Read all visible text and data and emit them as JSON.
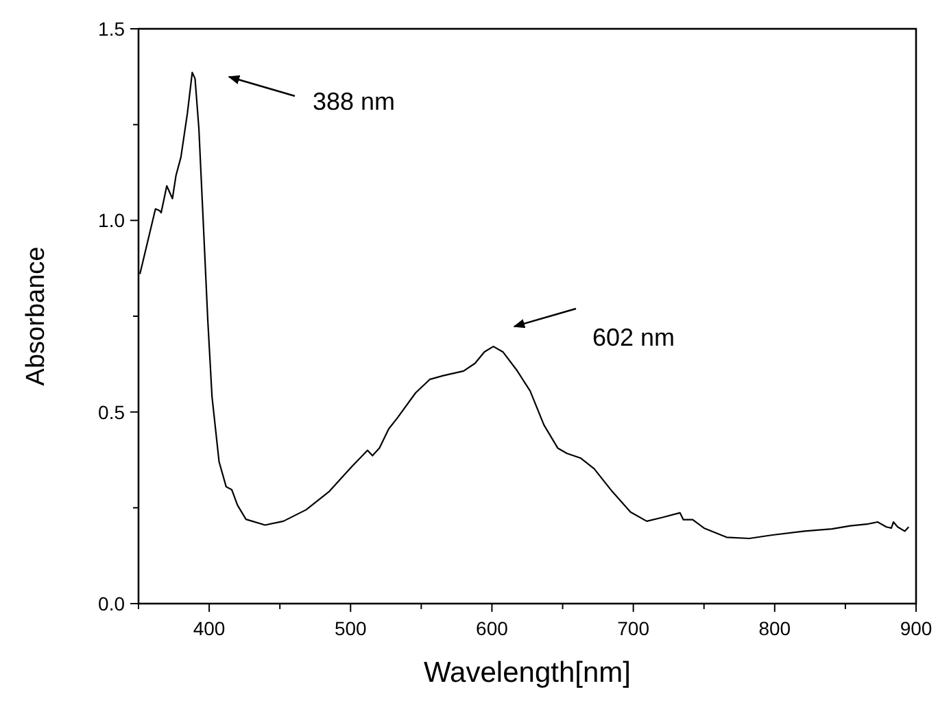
{
  "chart_data": {
    "type": "line",
    "xlabel": "Wavelength[nm]",
    "ylabel": "Absorbance",
    "xlim": [
      350,
      900
    ],
    "ylim": [
      0,
      1.5
    ],
    "xticks": [
      {
        "value": 350,
        "label": null
      },
      400,
      {
        "value": 450,
        "label": null
      },
      500,
      {
        "value": 550,
        "label": null
      },
      600,
      {
        "value": 650,
        "label": null
      },
      700,
      {
        "value": 750,
        "label": null
      },
      800,
      {
        "value": 850,
        "label": null
      },
      900
    ],
    "yticks": [
      {
        "value": 0,
        "label": "0.0"
      },
      {
        "value": 0.25,
        "label": null
      },
      {
        "value": 0.5,
        "label": "0.5"
      },
      {
        "value": 0.75,
        "label": null
      },
      {
        "value": 1.0,
        "label": "1.0"
      },
      {
        "value": 1.25,
        "label": null
      },
      {
        "value": 1.5,
        "label": "1.5"
      }
    ],
    "grid": false,
    "marker": "none",
    "line_style": "solid",
    "annotations": [
      "388 nm",
      "602 nm"
    ],
    "series": [
      {
        "color": "#000000",
        "x": [
          351,
          362,
          365,
          366,
          370,
          374,
          376.5,
          380,
          384.6,
          388,
          390,
          392.7,
          396,
          399,
          402,
          407,
          412,
          416,
          420,
          426,
          439.5,
          452.5,
          468.6,
          485,
          501,
          512,
          515.5,
          520.4,
          527,
          533,
          546,
          556,
          565.6,
          580,
          588,
          594.7,
          601,
          607.7,
          617.4,
          627,
          636.8,
          646.5,
          653,
          662.6,
          672.3,
          685,
          698,
          709.5,
          720.8,
          733,
          735.4,
          742,
          750,
          766,
          782,
          798.4,
          821,
          840.5,
          853.4,
          866.3,
          872.8,
          879,
          882.5,
          884,
          887,
          892,
          894.8
        ],
        "values": [
          0.86,
          1.03,
          1.025,
          1.02,
          1.09,
          1.057,
          1.117,
          1.165,
          1.28,
          1.386,
          1.37,
          1.24,
          0.98,
          0.74,
          0.54,
          0.37,
          0.305,
          0.297,
          0.257,
          0.22,
          0.205,
          0.215,
          0.245,
          0.293,
          0.358,
          0.4,
          0.386,
          0.406,
          0.456,
          0.484,
          0.55,
          0.585,
          0.595,
          0.607,
          0.627,
          0.657,
          0.671,
          0.657,
          0.61,
          0.555,
          0.466,
          0.406,
          0.392,
          0.38,
          0.352,
          0.293,
          0.239,
          0.215,
          0.225,
          0.237,
          0.219,
          0.219,
          0.197,
          0.173,
          0.17,
          0.179,
          0.189,
          0.195,
          0.203,
          0.208,
          0.213,
          0.2,
          0.197,
          0.213,
          0.2,
          0.189,
          0.2
        ]
      }
    ]
  }
}
